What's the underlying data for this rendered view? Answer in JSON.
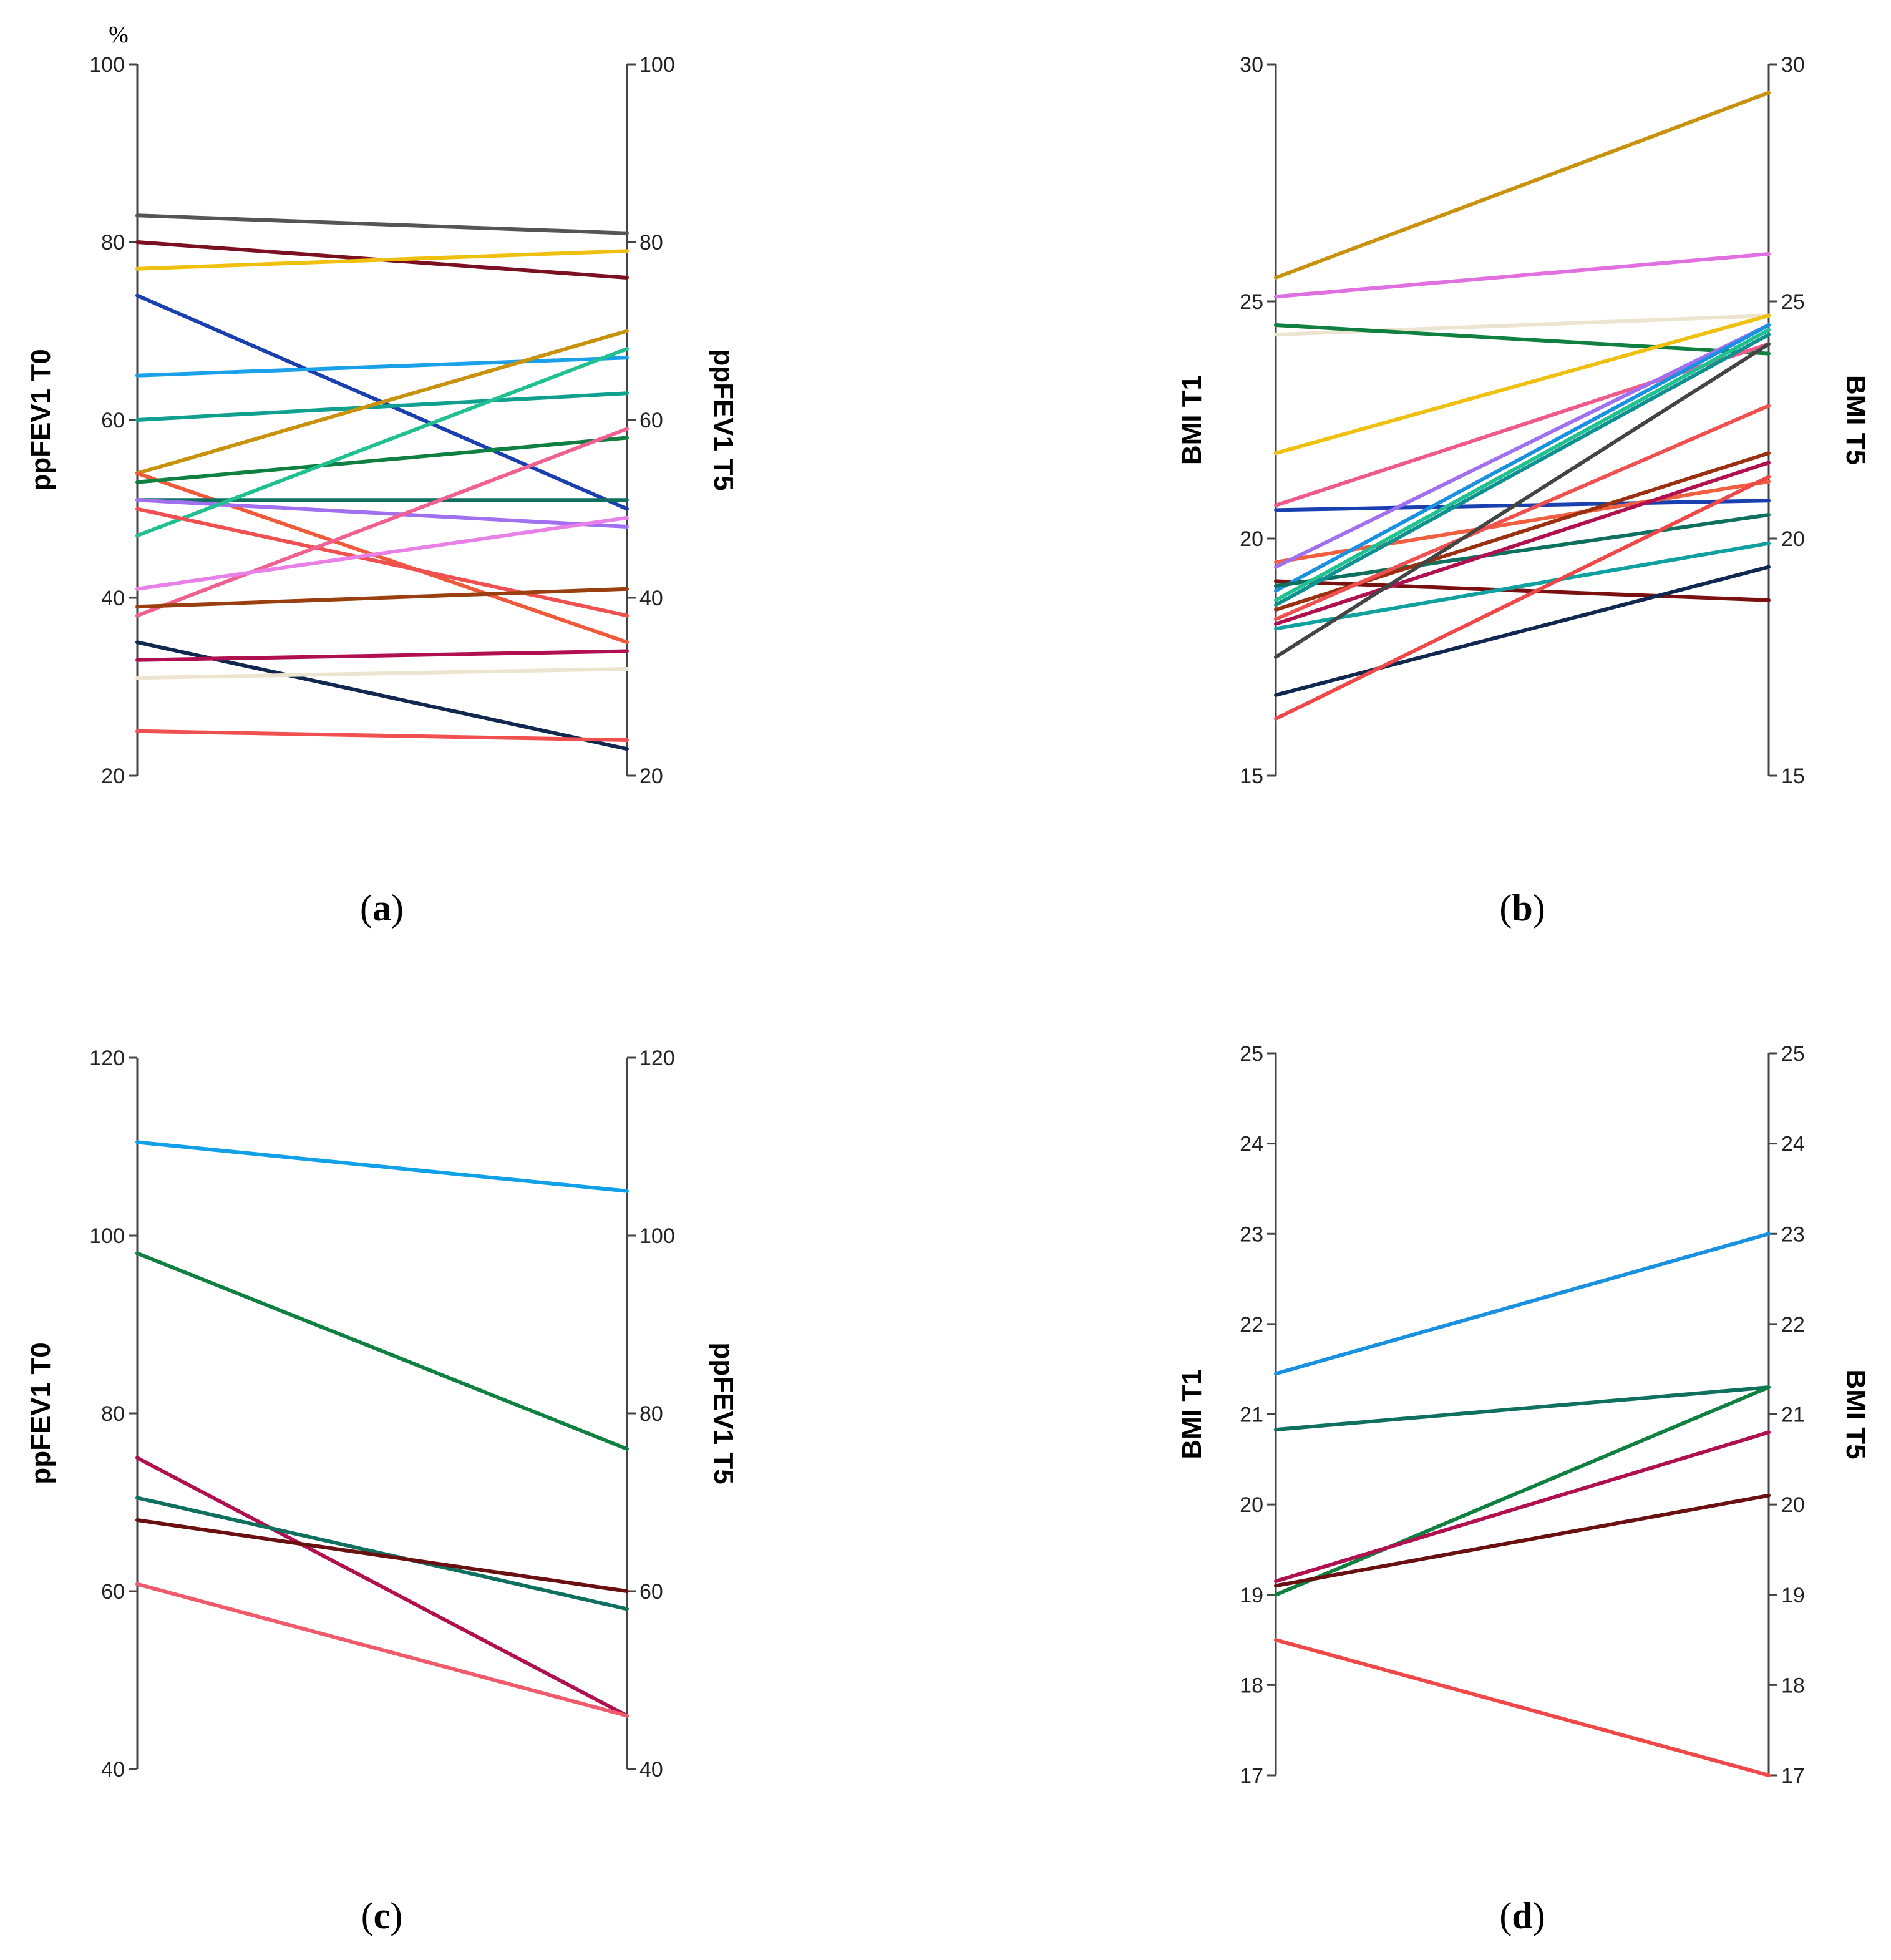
{
  "chart_data": [
    {
      "type": "line",
      "panel_label": "a",
      "unit": "%",
      "left_axis_label": "ppFEV1 T0",
      "right_axis_label": "ppFEV1 T5",
      "categories": [
        "T0",
        "T5"
      ],
      "ylim": [
        20,
        100
      ],
      "yticks": [
        20,
        40,
        60,
        80,
        100
      ],
      "grid": false,
      "series": [
        {
          "color": "#555555",
          "values": [
            83,
            81
          ]
        },
        {
          "color": "#7a1020",
          "values": [
            80,
            76
          ]
        },
        {
          "color": "#f0c010",
          "values": [
            77,
            79
          ]
        },
        {
          "color": "#1a40b0",
          "values": [
            74,
            50
          ]
        },
        {
          "color": "#1aa0e8",
          "values": [
            65,
            67
          ]
        },
        {
          "color": "#10a090",
          "values": [
            60,
            63
          ]
        },
        {
          "color": "#c8920c",
          "values": [
            54,
            70
          ]
        },
        {
          "color": "#f05a3a",
          "values": [
            54,
            35
          ]
        },
        {
          "color": "#108040",
          "values": [
            53,
            58
          ]
        },
        {
          "color": "#107060",
          "values": [
            51,
            51
          ]
        },
        {
          "color": "#a070f0",
          "values": [
            51,
            48
          ]
        },
        {
          "color": "#20c090",
          "values": [
            47,
            68
          ]
        },
        {
          "color": "#f05050",
          "values": [
            50,
            38
          ]
        },
        {
          "color": "#f06090",
          "values": [
            38,
            59
          ]
        },
        {
          "color": "#e880e8",
          "values": [
            41,
            49
          ]
        },
        {
          "color": "#9a4010",
          "values": [
            39,
            41
          ]
        },
        {
          "color": "#102850",
          "values": [
            35,
            23
          ]
        },
        {
          "color": "#b01050",
          "values": [
            33,
            34
          ]
        },
        {
          "color": "#ede4d0",
          "values": [
            31,
            32
          ]
        },
        {
          "color": "#f05050",
          "values": [
            25,
            24
          ]
        }
      ]
    },
    {
      "type": "line",
      "panel_label": "b",
      "left_axis_label": "BMI T1",
      "right_axis_label": "BMI T5",
      "categories": [
        "T1",
        "T5"
      ],
      "ylim": [
        15,
        30
      ],
      "yticks": [
        15,
        20,
        25,
        30
      ],
      "grid": false,
      "series": [
        {
          "color": "#c8920c",
          "values": [
            25.5,
            29.4
          ]
        },
        {
          "color": "#e070e0",
          "values": [
            25.1,
            26.0
          ]
        },
        {
          "color": "#ede4d0",
          "values": [
            24.3,
            24.7
          ]
        },
        {
          "color": "#108040",
          "values": [
            24.5,
            23.9
          ]
        },
        {
          "color": "#f0c010",
          "values": [
            21.8,
            24.7
          ]
        },
        {
          "color": "#f05a8a",
          "values": [
            20.7,
            24.1
          ]
        },
        {
          "color": "#1a40b0",
          "values": [
            20.6,
            20.8
          ]
        },
        {
          "color": "#f06040",
          "values": [
            19.5,
            21.2
          ]
        },
        {
          "color": "#a070f0",
          "values": [
            19.4,
            24.5
          ]
        },
        {
          "color": "#7a1010",
          "values": [
            19.1,
            18.7
          ]
        },
        {
          "color": "#1a90e0",
          "values": [
            18.9,
            24.5
          ]
        },
        {
          "color": "#107060",
          "values": [
            19.0,
            20.5
          ]
        },
        {
          "color": "#20c090",
          "values": [
            18.7,
            24.4
          ]
        },
        {
          "color": "#109090",
          "values": [
            18.6,
            24.3
          ]
        },
        {
          "color": "#9a3010",
          "values": [
            18.5,
            21.8
          ]
        },
        {
          "color": "#f05050",
          "values": [
            18.3,
            22.8
          ]
        },
        {
          "color": "#b01050",
          "values": [
            18.2,
            21.6
          ]
        },
        {
          "color": "#10a0a0",
          "values": [
            18.1,
            19.9
          ]
        },
        {
          "color": "#444444",
          "values": [
            17.5,
            24.1
          ]
        },
        {
          "color": "#102850",
          "values": [
            16.7,
            19.4
          ]
        },
        {
          "color": "#f04848",
          "values": [
            16.2,
            21.3
          ]
        }
      ]
    },
    {
      "type": "line",
      "panel_label": "c",
      "left_axis_label": "ppFEV1 T0",
      "right_axis_label": "ppFEV1 T5",
      "categories": [
        "T0",
        "T5"
      ],
      "ylim": [
        40,
        120
      ],
      "yticks": [
        40,
        60,
        80,
        100,
        120
      ],
      "grid": false,
      "series": [
        {
          "color": "#10a0e8",
          "values": [
            110.5,
            105
          ]
        },
        {
          "color": "#108040",
          "values": [
            98,
            76
          ]
        },
        {
          "color": "#b01050",
          "values": [
            75,
            46
          ]
        },
        {
          "color": "#107060",
          "values": [
            70.5,
            58
          ]
        },
        {
          "color": "#6a1010",
          "values": [
            68,
            60
          ]
        },
        {
          "color": "#f05a6a",
          "values": [
            60.8,
            46
          ]
        }
      ]
    },
    {
      "type": "line",
      "panel_label": "d",
      "left_axis_label": "BMI T1",
      "right_axis_label": "BMI T5",
      "categories": [
        "T1",
        "T5"
      ],
      "ylim": [
        17,
        25
      ],
      "yticks": [
        17,
        18,
        19,
        20,
        21,
        22,
        23,
        24,
        25
      ],
      "grid": false,
      "series": [
        {
          "color": "#1a90e0",
          "values": [
            21.45,
            23.0
          ]
        },
        {
          "color": "#107060",
          "values": [
            20.83,
            21.3
          ]
        },
        {
          "color": "#108040",
          "values": [
            19.0,
            21.3
          ]
        },
        {
          "color": "#b01050",
          "values": [
            19.15,
            20.8
          ]
        },
        {
          "color": "#6a1010",
          "values": [
            19.1,
            20.1
          ]
        },
        {
          "color": "#f04848",
          "values": [
            18.5,
            17.0
          ]
        }
      ]
    }
  ]
}
